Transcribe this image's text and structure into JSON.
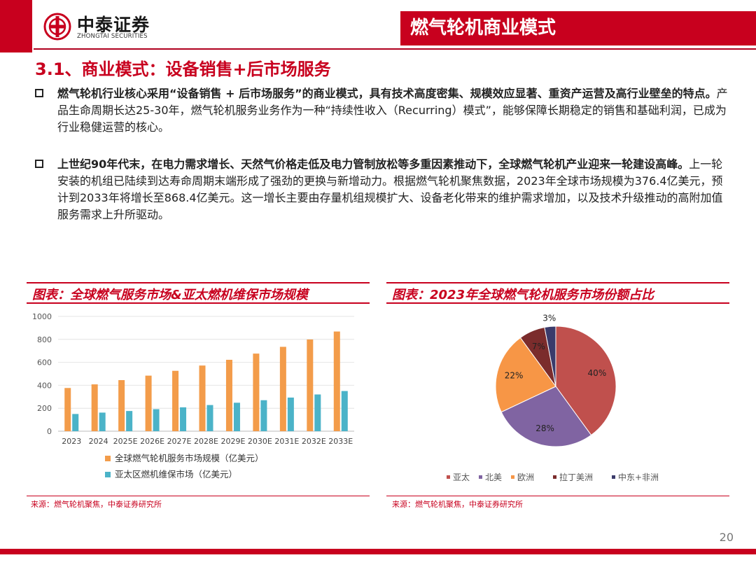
{
  "header": {
    "company_cn": "中泰证券",
    "company_en": "ZHONGTAI SECURITIES",
    "slide_title": "燃气轮机商业模式"
  },
  "section_title": "3.1、商业模式：设备销售+后市场服务",
  "paragraphs": [
    {
      "bold": "燃气轮机行业核心采用“设备销售 + 后市场服务”的商业模式，具有技术高度密集、规模效应显著、重资产运营及高行业壁垒的特点。",
      "normal": "产品生命周期长达25-30年，燃气轮机服务业务作为一种“持续性收入（Recurring）模式”，能够保障长期稳定的销售和基础利润，已成为行业稳健运营的核心。"
    },
    {
      "bold": "上世纪90年代末，在电力需求增长、天然气价格走低及电力管制放松等多重因素推动下，全球燃气轮机产业迎来一轮建设高峰。",
      "normal": "上一轮安装的机组已陆续到达寿命周期末端形成了强劲的更换与新增动力。根据燃气轮机聚焦数据，2023年全球市场规模为376.4亿美元，预计到2033年将增长至868.4亿美元。这一增长主要由存量机组规模扩大、设备老化带来的维护需求增加，以及技术升级推动的高附加值服务需求上升所驱动。"
    }
  ],
  "chart_data": [
    {
      "type": "bar",
      "caption": "图表：全球燃气服务市场&亚太燃机维保市场规模",
      "categories": [
        "2023",
        "2024",
        "2025E",
        "2026E",
        "2027E",
        "2028E",
        "2029E",
        "2030E",
        "2031E",
        "2032E",
        "2033E"
      ],
      "series": [
        {
          "name": "全球燃气轮机服务市场规模（亿美元）",
          "color": "#f39c4a",
          "values": [
            376.4,
            408,
            445,
            484,
            526,
            572,
            622,
            676,
            735,
            799,
            868.4
          ]
        },
        {
          "name": "亚太区燃机维保市场（亿美元）",
          "color": "#4bb3c8",
          "values": [
            150,
            162,
            176,
            192,
            208,
            228,
            248,
            270,
            293,
            320,
            350
          ]
        }
      ],
      "yticks": [
        "0",
        "200",
        "400",
        "600",
        "800",
        "1000"
      ],
      "ylim": [
        0,
        1000
      ],
      "grid": true,
      "legend": "bottom",
      "source": "来源：燃气轮机聚焦，中泰证券研究所"
    },
    {
      "type": "pie",
      "caption": "图表：2023年全球燃气轮机服务市场份额占比",
      "slices": [
        {
          "label": "亚太",
          "value": 40,
          "text": "40%",
          "color": "#c0504d"
        },
        {
          "label": "北美",
          "value": 28,
          "text": "28%",
          "color": "#8064a2"
        },
        {
          "label": "欧洲",
          "value": 22,
          "text": "22%",
          "color": "#f79646"
        },
        {
          "label": "拉丁美洲",
          "value": 7,
          "text": "7%",
          "color": "#7b2c2c"
        },
        {
          "label": "中东+非洲",
          "value": 3,
          "text": "3%",
          "color": "#3b3b6b"
        }
      ],
      "legend": "bottom",
      "source": "来源：燃气轮机聚焦，中泰证券研究所"
    }
  ],
  "page_number": "20"
}
